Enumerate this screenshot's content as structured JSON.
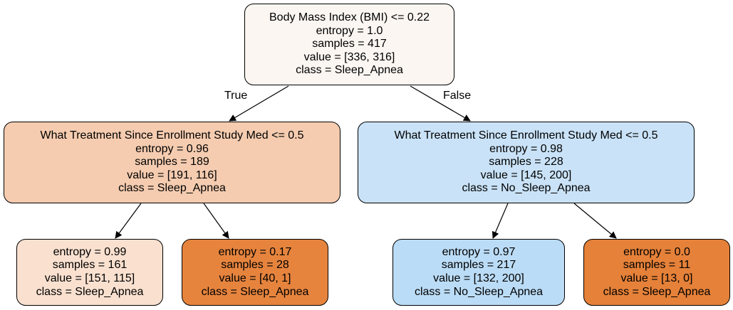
{
  "colors": {
    "root": "#fcf6f2",
    "node_left": "#f5ccb0",
    "node_right": "#c9e2f7",
    "leaf_1": "#f9e0cf",
    "leaf_2": "#e6843e",
    "leaf_3": "#bbdcf6",
    "leaf_4": "#e58139",
    "edge": "#000000"
  },
  "edge_labels": {
    "true": "True",
    "false": "False"
  },
  "nodes": [
    {
      "id": "root",
      "lines": [
        "Body Mass Index (BMI) <= 0.22",
        "entropy = 1.0",
        "samples = 417",
        "value = [336, 316]",
        "class = Sleep_Apnea"
      ]
    },
    {
      "id": "left",
      "lines": [
        "What Treatment Since Enrollment Study Med <= 0.5",
        "entropy = 0.96",
        "samples = 189",
        "value = [191, 116]",
        "class = Sleep_Apnea"
      ]
    },
    {
      "id": "right",
      "lines": [
        "What Treatment Since Enrollment Study Med <= 0.5",
        "entropy = 0.98",
        "samples = 228",
        "value = [145, 200]",
        "class = No_Sleep_Apnea"
      ]
    },
    {
      "id": "leaf1",
      "lines": [
        "entropy = 0.99",
        "samples = 161",
        "value = [151, 115]",
        "class = Sleep_Apnea"
      ]
    },
    {
      "id": "leaf2",
      "lines": [
        "entropy = 0.17",
        "samples = 28",
        "value = [40, 1]",
        "class = Sleep_Apnea"
      ]
    },
    {
      "id": "leaf3",
      "lines": [
        "entropy = 0.97",
        "samples = 217",
        "value = [132, 200]",
        "class = No_Sleep_Apnea"
      ]
    },
    {
      "id": "leaf4",
      "lines": [
        "entropy = 0.0",
        "samples = 11",
        "value = [13, 0]",
        "class = Sleep_Apnea"
      ]
    }
  ]
}
